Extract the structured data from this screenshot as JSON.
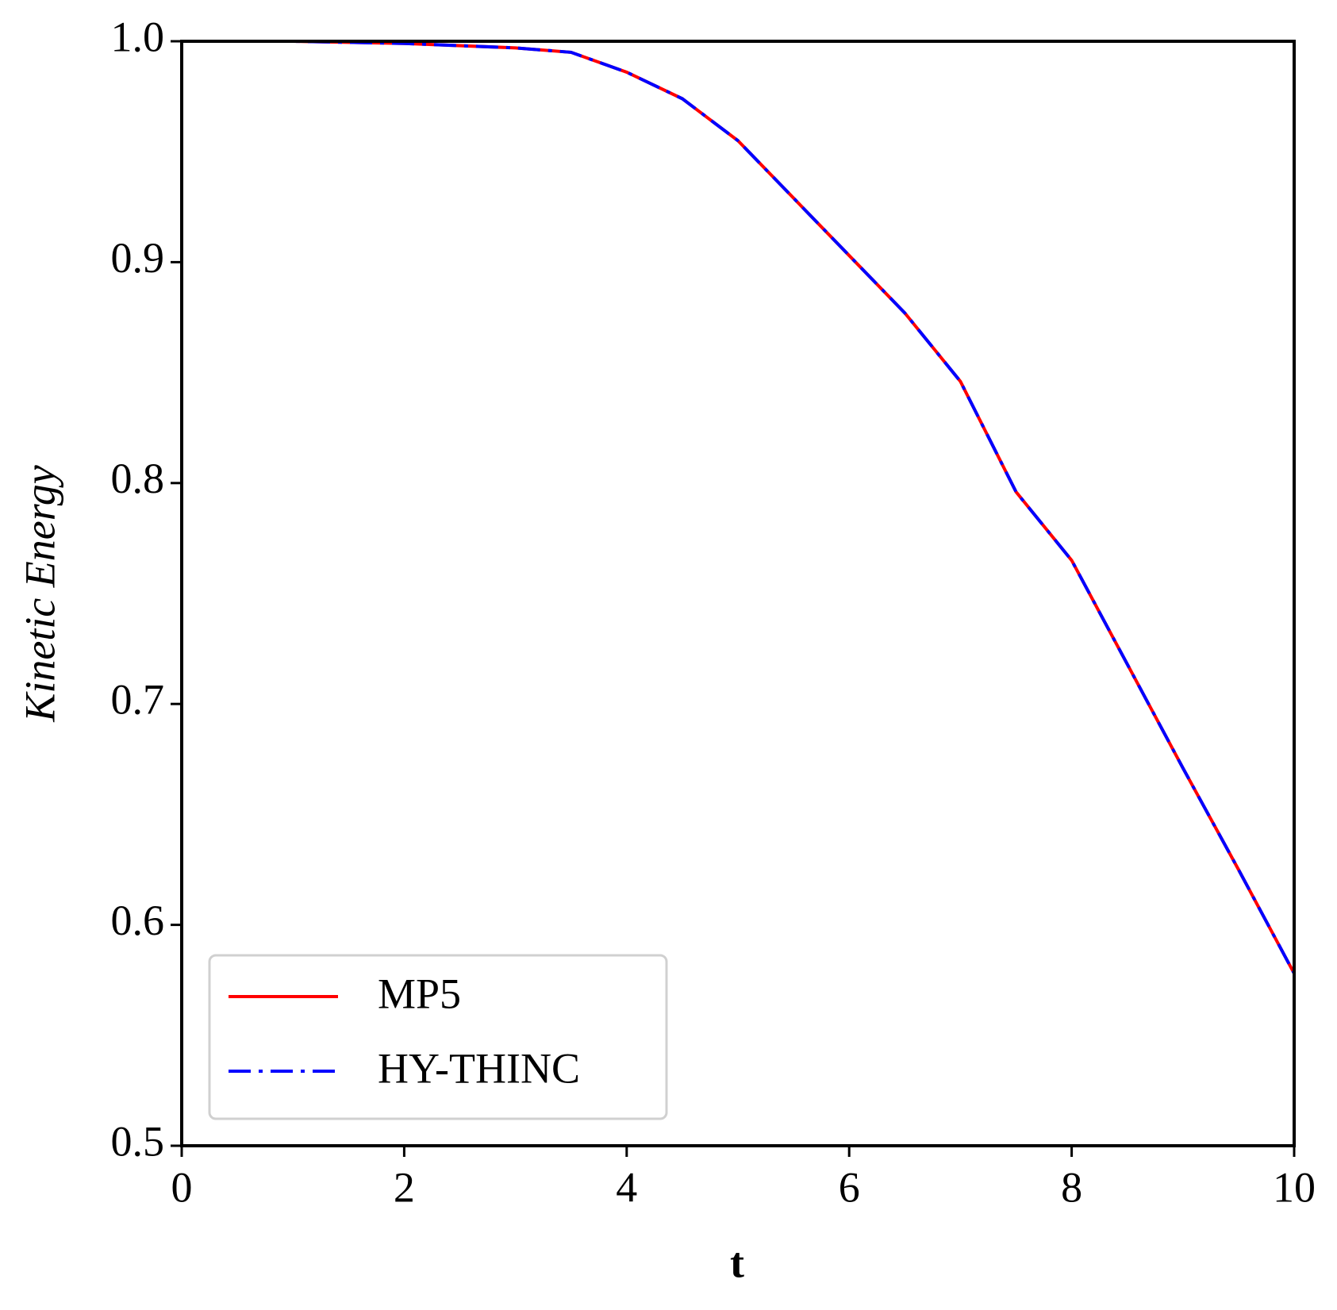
{
  "chart_data": {
    "type": "line",
    "x_label": "t",
    "y_label": "Kinetic Energy",
    "x": [
      0,
      1,
      2,
      3,
      3.5,
      4,
      4.5,
      5,
      5.5,
      6,
      6.5,
      7,
      7.5,
      8,
      8.5,
      9,
      9.5,
      10
    ],
    "series": [
      {
        "name": "MP5",
        "color": "#ff0000",
        "style": "solid",
        "values": [
          1.0,
          1.0,
          0.999,
          0.997,
          0.995,
          0.986,
          0.974,
          0.955,
          0.929,
          0.903,
          0.877,
          0.846,
          0.796,
          0.765,
          0.718,
          0.671,
          0.625,
          0.578
        ]
      },
      {
        "name": "HY-THINC",
        "color": "#0000ff",
        "style": "dashdot",
        "values": [
          1.0,
          1.0,
          0.999,
          0.997,
          0.995,
          0.986,
          0.974,
          0.955,
          0.929,
          0.903,
          0.877,
          0.846,
          0.796,
          0.765,
          0.718,
          0.671,
          0.625,
          0.578
        ]
      }
    ],
    "xlim": [
      0,
      10
    ],
    "xticks": [
      0,
      2,
      4,
      6,
      8,
      10
    ],
    "ylim": [
      0.5,
      1.0
    ],
    "yticks": [
      {
        "value": 0.5,
        "label": "0.5"
      },
      {
        "value": 0.6,
        "label": "0.6"
      },
      {
        "value": 0.7,
        "label": "0.7"
      },
      {
        "value": 0.8,
        "label": "0.8"
      },
      {
        "value": 0.9,
        "label": "0.9"
      },
      {
        "value": 1.0,
        "label": "1.0"
      }
    ],
    "legend": "lower left",
    "grid": false
  }
}
